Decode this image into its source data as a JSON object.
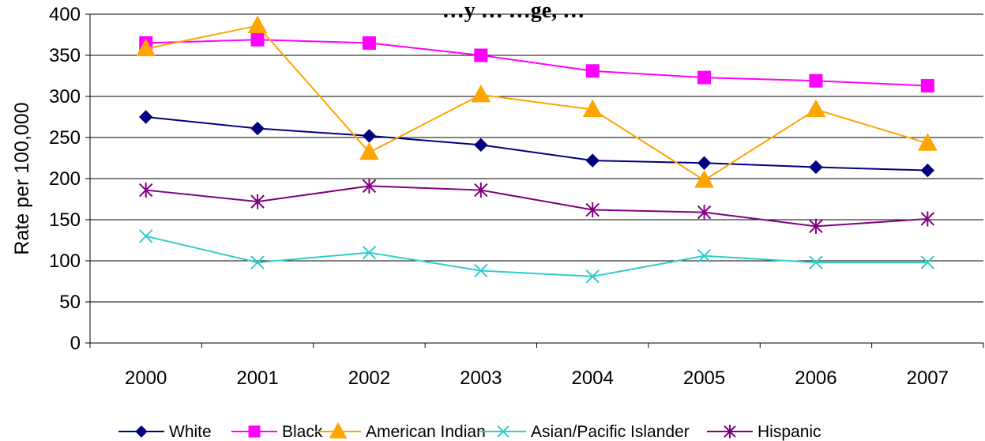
{
  "chart_data": {
    "type": "line",
    "title": "…y … …ge, …",
    "xlabel": "",
    "ylabel": "Rate per 100,000",
    "ylim": [
      0,
      400
    ],
    "yticks": [
      0,
      50,
      100,
      150,
      200,
      250,
      300,
      350,
      400
    ],
    "categories": [
      "2000",
      "2001",
      "2002",
      "2003",
      "2004",
      "2005",
      "2006",
      "2007"
    ],
    "grid": "horizontal",
    "legend_position": "bottom",
    "series": [
      {
        "name": "White",
        "color": "#000080",
        "marker": "diamond",
        "values": [
          275,
          261,
          252,
          241,
          222,
          219,
          214,
          210
        ]
      },
      {
        "name": "Black",
        "color": "#ff00ff",
        "marker": "square",
        "values": [
          365,
          369,
          365,
          350,
          331,
          323,
          319,
          313
        ]
      },
      {
        "name": "American Indian",
        "color": "#ffa500",
        "marker": "triangle",
        "values": [
          358,
          386,
          232,
          302,
          284,
          198,
          284,
          243
        ]
      },
      {
        "name": "Asian/Pacific Islander",
        "color": "#33cccc",
        "marker": "x",
        "values": [
          130,
          98,
          110,
          88,
          81,
          106,
          98,
          98
        ]
      },
      {
        "name": "Hispanic",
        "color": "#800080",
        "marker": "star",
        "values": [
          186,
          172,
          191,
          186,
          162,
          159,
          142,
          151
        ]
      }
    ]
  }
}
